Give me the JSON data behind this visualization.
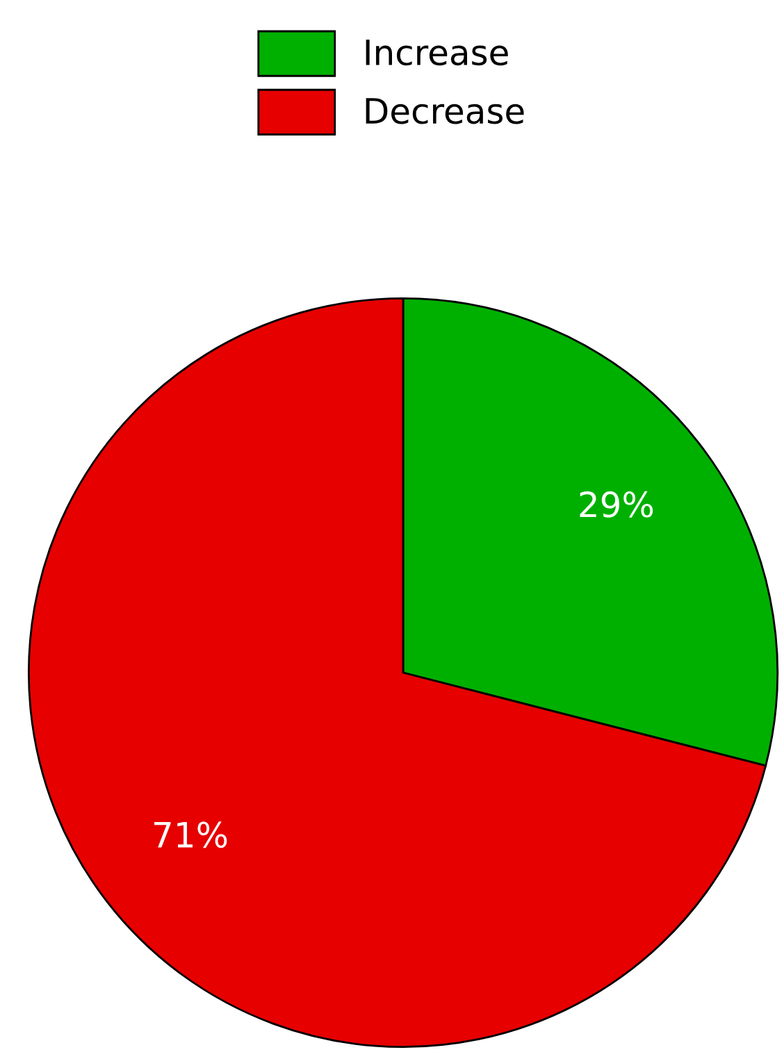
{
  "chart_data": {
    "type": "pie",
    "categories": [
      "Increase",
      "Decrease"
    ],
    "values": [
      29,
      71
    ],
    "colors": [
      "#00b000",
      "#e60000"
    ],
    "value_labels": [
      "29%",
      "71%"
    ],
    "legend": "top"
  }
}
